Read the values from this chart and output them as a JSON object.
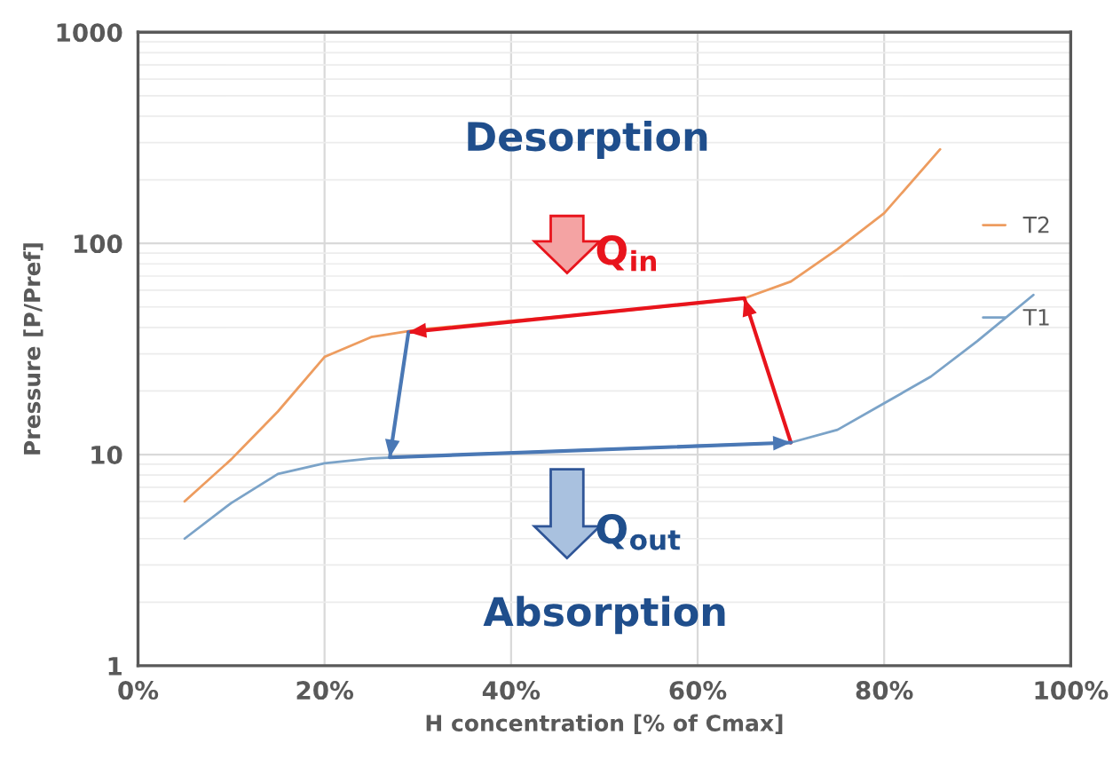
{
  "chart_data": {
    "type": "line",
    "xlabel": "H concentration [% of Cmax]",
    "ylabel": "Pressure [P/Pref]",
    "xlim": [
      0,
      100
    ],
    "xticks": [
      {
        "value": 0,
        "label": "0%"
      },
      {
        "value": 20,
        "label": "20%"
      },
      {
        "value": 40,
        "label": "40%"
      },
      {
        "value": 60,
        "label": "60%"
      },
      {
        "value": 80,
        "label": "80%"
      },
      {
        "value": 100,
        "label": "100%"
      }
    ],
    "ylim": [
      1,
      1000
    ],
    "yticks": [
      1,
      10,
      100,
      1000
    ],
    "log": true,
    "grid": true,
    "legend": "right",
    "marker": "none",
    "line_style": "solid",
    "series": [
      {
        "name": "T2",
        "color": "#ed9c5f",
        "x": [
          5,
          10,
          15,
          20,
          25,
          30,
          40,
          50,
          60,
          65,
          70,
          75,
          80,
          86
        ],
        "values": [
          6,
          9.5,
          16,
          29,
          36,
          39,
          43,
          47,
          52,
          55,
          66,
          94,
          139,
          279
        ]
      },
      {
        "name": "T1",
        "color": "#7ba3c8",
        "x": [
          5,
          10,
          15,
          20,
          25,
          30,
          40,
          50,
          60,
          70,
          75,
          80,
          85,
          90,
          96
        ],
        "values": [
          4,
          5.9,
          8.1,
          9.1,
          9.6,
          9.8,
          10.2,
          10.6,
          11,
          11.4,
          13.1,
          17.5,
          23.4,
          34.5,
          57
        ]
      },
      {
        "color": "#e8141c",
        "x": [
          70,
          65,
          29
        ],
        "values": [
          11.4,
          55,
          38
        ]
      },
      {
        "color": "#4a78b5",
        "x": [
          29,
          27,
          70
        ],
        "values": [
          38,
          9.7,
          11.4
        ]
      }
    ],
    "annotations": [
      "Desorption",
      "Q$_{in}$",
      "Q$_{out}$",
      "Absorption"
    ]
  }
}
